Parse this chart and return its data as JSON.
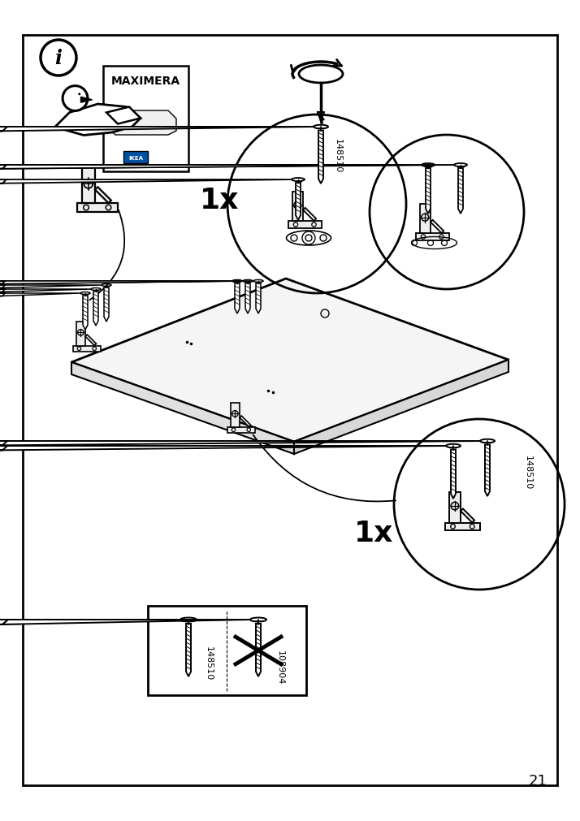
{
  "page_number": "21",
  "bg": "#ffffff",
  "lc": "#000000",
  "border": [
    28,
    28,
    686,
    968
  ],
  "info_icon": [
    68,
    75
  ],
  "screw_id_1": "148510",
  "screw_id_2": "148510",
  "screw_id_box1": "148510",
  "screw_id_box2": "108904",
  "label_maximera": "MAXIMERA",
  "label_1x_a": "1x",
  "label_1x_b": "1x"
}
